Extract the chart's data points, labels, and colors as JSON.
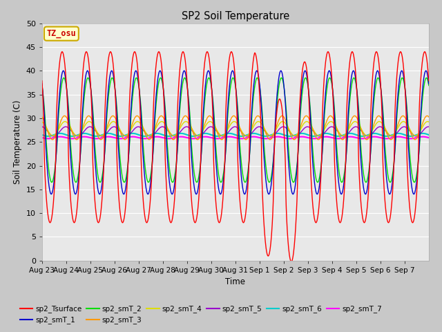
{
  "title": "SP2 Soil Temperature",
  "ylabel": "Soil Temperature (C)",
  "xlabel": "Time",
  "ylim": [
    0,
    50
  ],
  "yticks": [
    0,
    5,
    10,
    15,
    20,
    25,
    30,
    35,
    40,
    45,
    50
  ],
  "plot_bg_color": "#e8e8e8",
  "fig_bg_color": "#c8c8c8",
  "tz_label": "TZ_osu",
  "tz_bg": "#ffffcc",
  "tz_border": "#ccaa00",
  "tz_text_color": "#cc0000",
  "series_colors": {
    "sp2_Tsurface": "#ff0000",
    "sp2_smT_1": "#0000cc",
    "sp2_smT_2": "#00dd00",
    "sp2_smT_3": "#ff9900",
    "sp2_smT_4": "#dddd00",
    "sp2_smT_5": "#9900cc",
    "sp2_smT_6": "#00cccc",
    "sp2_smT_7": "#ff00ff"
  },
  "x_tick_labels": [
    "Aug 23",
    "Aug 24",
    "Aug 25",
    "Aug 26",
    "Aug 27",
    "Aug 28",
    "Aug 29",
    "Aug 30",
    "Aug 31",
    "Sep 1",
    "Sep 2",
    "Sep 3",
    "Sep 4",
    "Sep 5",
    "Sep 6",
    "Sep 7"
  ]
}
